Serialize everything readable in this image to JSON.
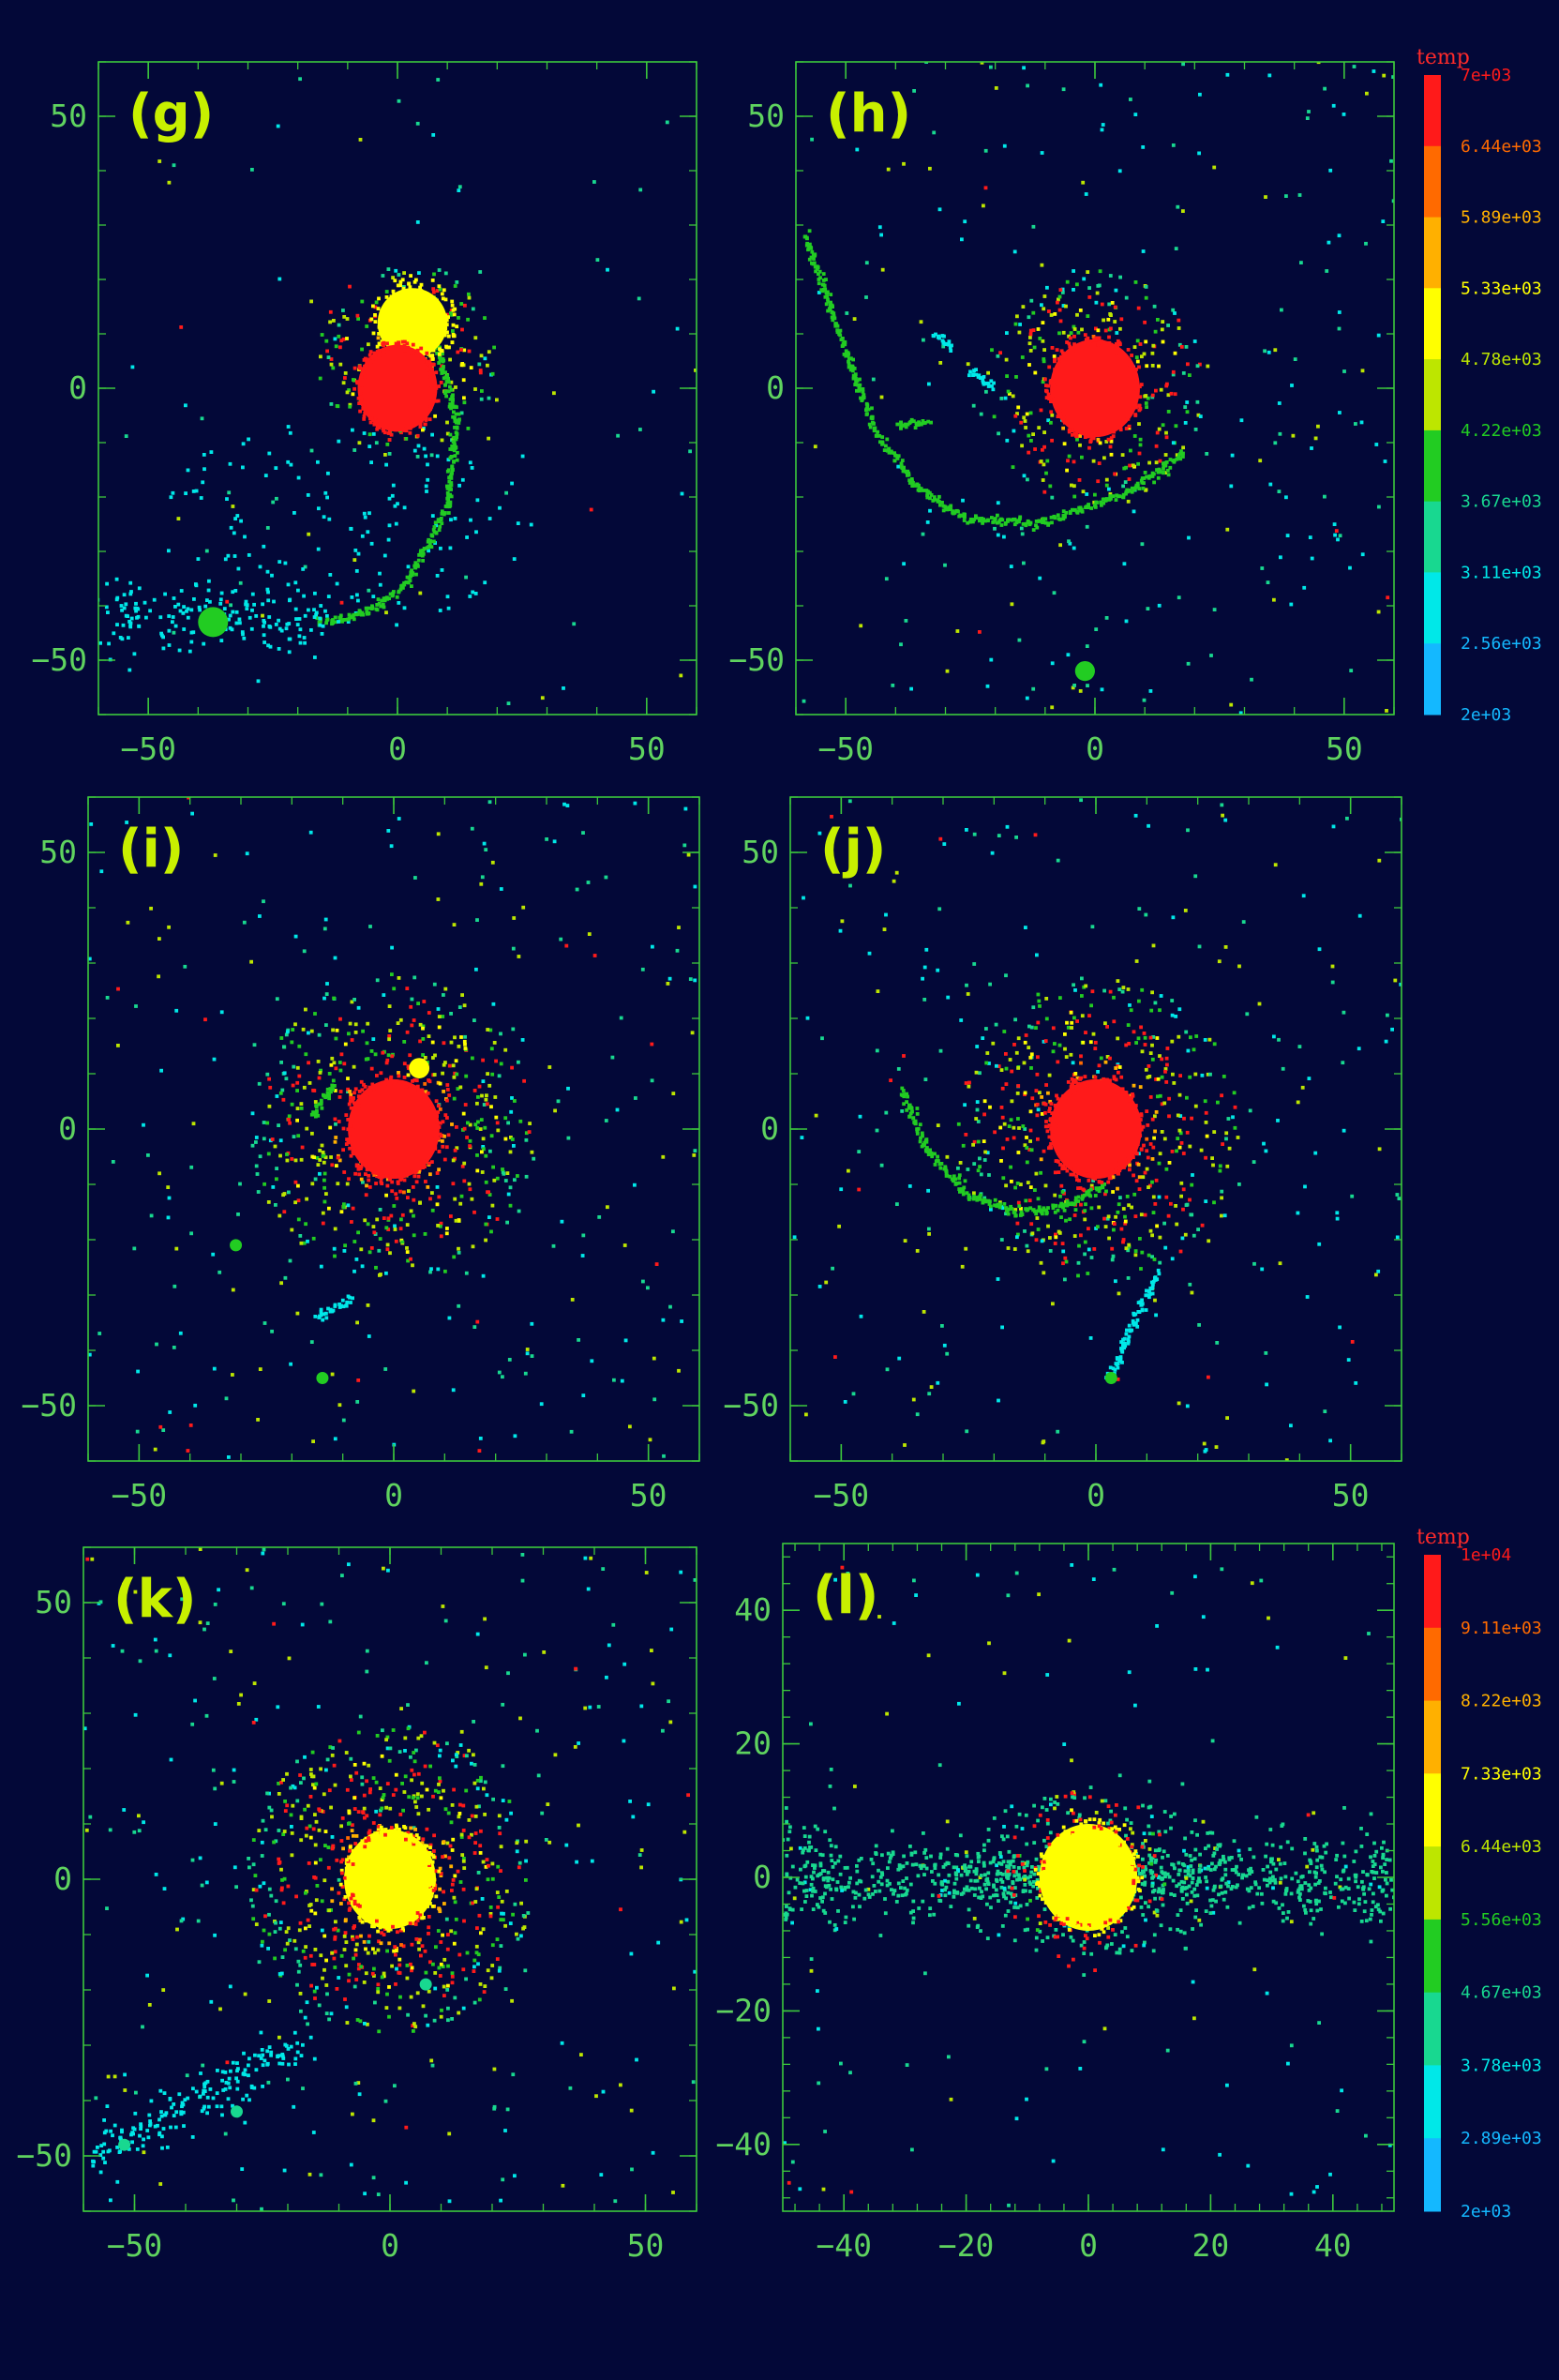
{
  "colors": {
    "background": "#030838",
    "frame": "#3cc83c",
    "tick_label": "#5fd35f",
    "panel_tag": "#c8f000",
    "colorbar_title": "#ff2a2a"
  },
  "chart_data": [
    {
      "type": "scatter",
      "panel": "(g)",
      "xlim": [
        -60,
        60
      ],
      "ylim": [
        -60,
        60
      ],
      "xticks": [
        -50,
        0,
        50
      ],
      "yticks": [
        -50,
        0,
        50
      ],
      "xtick_labels": [
        "−50",
        "0",
        "50"
      ],
      "ytick_labels": [
        "−50",
        "0",
        "50"
      ],
      "features": {
        "hot_core": {
          "center": [
            0,
            0
          ],
          "radius": 8,
          "temp": 7000
        },
        "warm_cap": {
          "center": [
            3,
            12
          ],
          "radius": 7,
          "temp": 4780
        },
        "halo": {
          "center": [
            2,
            5
          ],
          "radius": 18,
          "count": 300
        },
        "diffuse": {
          "center": [
            -10,
            -25
          ],
          "radius": 70,
          "count": 160,
          "temp": 3110
        },
        "sparse_field": {
          "count": 70
        },
        "streams": [
          {
            "points": [
              [
                8,
                8
              ],
              [
                12,
                -6
              ],
              [
                10,
                -22
              ],
              [
                2,
                -36
              ],
              [
                -8,
                -42
              ],
              [
                -16,
                -43
              ]
            ],
            "temp": 3670
          },
          {
            "points": [
              [
                -60,
                -42
              ],
              [
                -38,
                -42
              ],
              [
                -16,
                -44
              ]
            ],
            "temp": 3110,
            "spread": 6
          }
        ],
        "clumps": [
          {
            "center": [
              -37,
              -43
            ],
            "radius": 3,
            "temp": 4220
          }
        ]
      }
    },
    {
      "type": "scatter",
      "panel": "(h)",
      "xlim": [
        -60,
        60
      ],
      "ylim": [
        -60,
        60
      ],
      "xticks": [
        -50,
        0,
        50
      ],
      "yticks": [
        -50,
        0,
        50
      ],
      "xtick_labels": [
        "−50",
        "0",
        "50"
      ],
      "ytick_labels": [
        "−50",
        "0",
        "50"
      ],
      "features": {
        "hot_core": {
          "center": [
            0,
            0
          ],
          "radius": 9,
          "temp": 7000
        },
        "halo": {
          "center": [
            0,
            0
          ],
          "radius": 22,
          "count": 420
        },
        "sparse_field": {
          "count": 230
        },
        "streams": [
          {
            "points": [
              [
                -58,
                28
              ],
              [
                -52,
                12
              ],
              [
                -44,
                -8
              ],
              [
                -36,
                -18
              ],
              [
                -26,
                -24
              ],
              [
                -12,
                -25
              ],
              [
                5,
                -20
              ],
              [
                18,
                -12
              ]
            ],
            "temp": 3670
          },
          {
            "points": [
              [
                -40,
                -7
              ],
              [
                -33,
                -6
              ]
            ],
            "temp": 3670
          },
          {
            "points": [
              [
                -25,
                3
              ],
              [
                -20,
                0
              ]
            ],
            "temp": 3110
          },
          {
            "points": [
              [
                -32,
                10
              ],
              [
                -29,
                7
              ]
            ],
            "temp": 3110
          }
        ],
        "clumps": [
          {
            "center": [
              -2,
              -52
            ],
            "radius": 2,
            "temp": 4220
          }
        ]
      }
    },
    {
      "type": "scatter",
      "panel": "(i)",
      "xlim": [
        -60,
        60
      ],
      "ylim": [
        -60,
        60
      ],
      "xticks": [
        -50,
        0,
        50
      ],
      "yticks": [
        -50,
        0,
        50
      ],
      "xtick_labels": [
        "−50",
        "0",
        "50"
      ],
      "ytick_labels": [
        "−50",
        "0",
        "50"
      ],
      "features": {
        "hot_core": {
          "center": [
            0,
            0
          ],
          "radius": 9,
          "temp": 7000
        },
        "halo": {
          "center": [
            0,
            0
          ],
          "radius": 28,
          "count": 700
        },
        "sparse_field": {
          "count": 260
        },
        "streams": [
          {
            "points": [
              [
                -15,
                -34
              ],
              [
                -8,
                -31
              ]
            ],
            "temp": 3110
          },
          {
            "points": [
              [
                -12,
                8
              ],
              [
                -16,
                2
              ]
            ],
            "temp": 3670
          }
        ],
        "clumps": [
          {
            "center": [
              5,
              11
            ],
            "radius": 2,
            "temp": 4780
          },
          {
            "center": [
              -14,
              -45
            ],
            "radius": 1,
            "temp": 4220
          },
          {
            "center": [
              -31,
              -21
            ],
            "radius": 1,
            "temp": 4220
          }
        ]
      }
    },
    {
      "type": "scatter",
      "panel": "(j)",
      "xlim": [
        -60,
        60
      ],
      "ylim": [
        -60,
        60
      ],
      "xticks": [
        -50,
        0,
        50
      ],
      "yticks": [
        -50,
        0,
        50
      ],
      "xtick_labels": [
        "−50",
        "0",
        "50"
      ],
      "ytick_labels": [
        "−50",
        "0",
        "50"
      ],
      "features": {
        "hot_core": {
          "center": [
            0,
            0
          ],
          "radius": 9,
          "temp": 7000
        },
        "halo": {
          "center": [
            0,
            0
          ],
          "radius": 28,
          "count": 700
        },
        "sparse_field": {
          "count": 260
        },
        "streams": [
          {
            "points": [
              [
                -38,
                7
              ],
              [
                -33,
                -4
              ],
              [
                -25,
                -12
              ],
              [
                -16,
                -15
              ],
              [
                -6,
                -14
              ],
              [
                2,
                -10
              ]
            ],
            "temp": 4220
          },
          {
            "points": [
              [
                12,
                -26
              ],
              [
                6,
                -38
              ],
              [
                3,
                -45
              ]
            ],
            "temp": 3110
          }
        ],
        "clumps": [
          {
            "center": [
              3,
              -45
            ],
            "radius": 1,
            "temp": 4220
          }
        ]
      }
    },
    {
      "type": "scatter",
      "panel": "(k)",
      "xlim": [
        -60,
        60
      ],
      "ylim": [
        -60,
        60
      ],
      "xticks": [
        -50,
        0,
        50
      ],
      "yticks": [
        -50,
        0,
        50
      ],
      "xtick_labels": [
        "−50",
        "0",
        "50"
      ],
      "ytick_labels": [
        "−50",
        "0",
        "50"
      ],
      "features": {
        "hot_core": {
          "center": [
            0,
            0
          ],
          "radius": 9,
          "temp": 7000
        },
        "halo": {
          "center": [
            0,
            0
          ],
          "radius": 28,
          "count": 800
        },
        "sparse_field": {
          "count": 280
        },
        "streams": [
          {
            "points": [
              [
                -58,
                -50
              ],
              [
                -44,
                -43
              ],
              [
                -30,
                -36
              ],
              [
                -18,
                -30
              ]
            ],
            "temp": 3110,
            "spread": 4
          }
        ],
        "clumps": [
          {
            "center": [
              -52,
              -48
            ],
            "radius": 1,
            "temp": 4220
          },
          {
            "center": [
              -30,
              -42
            ],
            "radius": 1,
            "temp": 4220
          },
          {
            "center": [
              7,
              -19
            ],
            "radius": 1,
            "temp": 4220
          }
        ]
      }
    },
    {
      "type": "scatter",
      "panel": "(l)",
      "xlim": [
        -50,
        50
      ],
      "ylim": [
        -50,
        50
      ],
      "xticks": [
        -40,
        -20,
        0,
        20,
        40
      ],
      "yticks": [
        -40,
        -20,
        0,
        20,
        40
      ],
      "xtick_labels": [
        "−40",
        "−20",
        "0",
        "20",
        "40"
      ],
      "ytick_labels": [
        "−40",
        "−20",
        "0",
        "20",
        "40"
      ],
      "features": {
        "hot_core": {
          "center": [
            0,
            0
          ],
          "radius": 8,
          "temp": 7330
        },
        "halo": {
          "center": [
            0,
            0
          ],
          "radius": 14,
          "count": 140,
          "temp": 10000
        },
        "disk": {
          "center": [
            0,
            0
          ],
          "half_length": 50,
          "half_thickness": 4,
          "count": 900,
          "temp": 3780
        },
        "diffuse": {
          "center": [
            0,
            0
          ],
          "radius": 45,
          "count": 260,
          "temp": 3780
        },
        "sparse_field": {
          "count": 120
        }
      }
    }
  ],
  "colorbars": [
    {
      "title": "temp",
      "range": [
        2000,
        7000
      ],
      "tick_labels": [
        "7e+03",
        "6.44e+03",
        "5.89e+03",
        "5.33e+03",
        "4.78e+03",
        "4.22e+03",
        "3.67e+03",
        "3.11e+03",
        "2.56e+03",
        "2e+03"
      ],
      "colors": [
        "#ff1a1a",
        "#ff6a00",
        "#ffb000",
        "#ffff00",
        "#bde600",
        "#22cc22",
        "#18d890",
        "#00e8e8",
        "#14b8ff"
      ]
    },
    {
      "title": "temp",
      "range": [
        2000,
        10000
      ],
      "tick_labels": [
        "1e+04",
        "9.11e+03",
        "8.22e+03",
        "7.33e+03",
        "6.44e+03",
        "5.56e+03",
        "4.67e+03",
        "3.78e+03",
        "2.89e+03",
        "2e+03"
      ],
      "colors": [
        "#ff1a1a",
        "#ff6a00",
        "#ffb000",
        "#ffff00",
        "#bde600",
        "#22cc22",
        "#18d890",
        "#00e8e8",
        "#14b8ff"
      ]
    }
  ]
}
